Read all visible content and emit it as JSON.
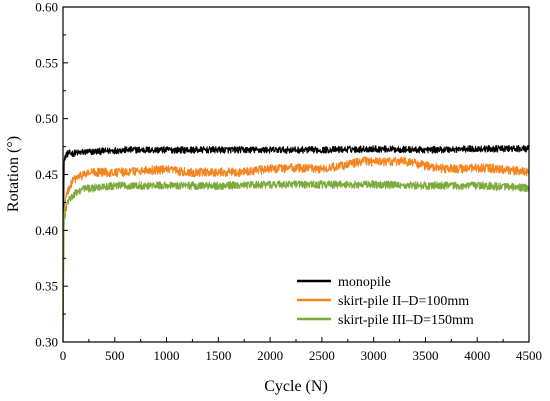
{
  "chart_data": {
    "type": "line",
    "title": "",
    "xlabel": "Cycle (N)",
    "ylabel": "Rotation (°)",
    "xlim": [
      0,
      4500
    ],
    "ylim": [
      0.3,
      0.6
    ],
    "xticks": [
      "0",
      "500",
      "1000",
      "1500",
      "2000",
      "2500",
      "3000",
      "3500",
      "4000",
      "4500"
    ],
    "yticks": [
      "0.30",
      "0.35",
      "0.40",
      "0.45",
      "0.50",
      "0.55",
      "0.60"
    ],
    "legend_position": "bottom-right",
    "grid": false,
    "series": [
      {
        "name": "monopile",
        "color": "#000000",
        "x": [
          0,
          10,
          30,
          60,
          100,
          200,
          400,
          600,
          800,
          1000,
          1500,
          2000,
          2500,
          3000,
          3500,
          4000,
          4500
        ],
        "y": [
          0.3,
          0.462,
          0.468,
          0.469,
          0.469,
          0.47,
          0.471,
          0.472,
          0.472,
          0.472,
          0.472,
          0.472,
          0.472,
          0.473,
          0.472,
          0.473,
          0.473
        ],
        "noise": 0.003
      },
      {
        "name": "skirt-pile II–D=100mm",
        "color": "#f5861f",
        "x": [
          0,
          10,
          30,
          60,
          100,
          150,
          200,
          300,
          400,
          600,
          800,
          1000,
          1200,
          1500,
          1700,
          2000,
          2200,
          2500,
          2700,
          2900,
          3100,
          3300,
          3500,
          3700,
          3900,
          4100,
          4300,
          4500
        ],
        "y": [
          0.3,
          0.415,
          0.43,
          0.438,
          0.445,
          0.448,
          0.45,
          0.452,
          0.452,
          0.452,
          0.454,
          0.454,
          0.452,
          0.452,
          0.452,
          0.455,
          0.456,
          0.455,
          0.458,
          0.462,
          0.461,
          0.462,
          0.458,
          0.455,
          0.455,
          0.456,
          0.454,
          0.452
        ],
        "noise": 0.004
      },
      {
        "name": "skirt-pile III–D=150mm",
        "color": "#7aab3c",
        "x": [
          0,
          10,
          30,
          60,
          100,
          150,
          200,
          300,
          400,
          600,
          800,
          1000,
          1500,
          2000,
          2500,
          3000,
          3500,
          4000,
          4500
        ],
        "y": [
          0.3,
          0.408,
          0.42,
          0.428,
          0.432,
          0.435,
          0.437,
          0.438,
          0.439,
          0.44,
          0.44,
          0.44,
          0.44,
          0.441,
          0.441,
          0.441,
          0.44,
          0.44,
          0.438
        ],
        "noise": 0.0035
      }
    ]
  }
}
